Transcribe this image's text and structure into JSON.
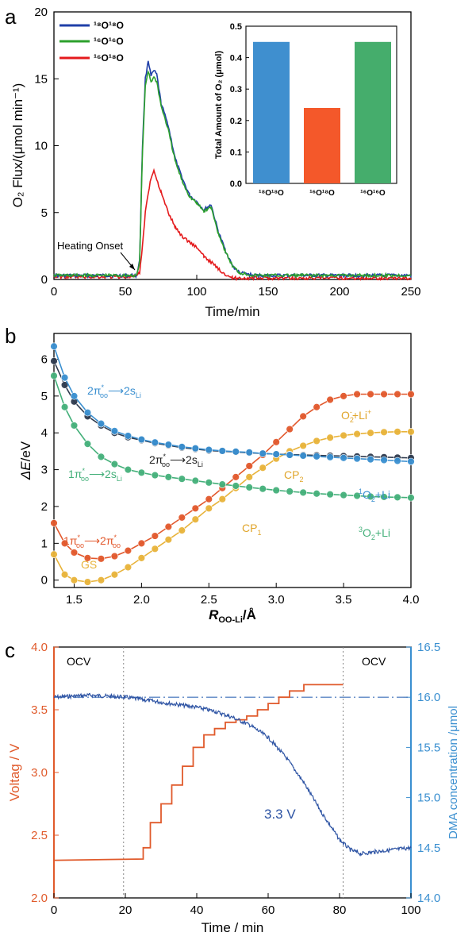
{
  "chart_data": [
    {
      "panel_label": "a",
      "type": "line",
      "xlabel": "Time/min",
      "ylabel": "O₂ Flux/(μmol min⁻¹)",
      "xlim": [
        0,
        250
      ],
      "ylim": [
        0,
        20
      ],
      "xticks": [
        "0",
        "50",
        "100",
        "150",
        "200",
        "250"
      ],
      "yticks": [
        "0",
        "5",
        "10",
        "15",
        "20"
      ],
      "legend_position": "top-left",
      "annotation": "Heating Onset",
      "annotation_x": 60,
      "series": [
        {
          "name": "¹⁸O¹⁸O",
          "color": "#1f3fa8",
          "x": [
            0,
            58,
            60,
            62,
            64,
            66,
            68,
            70,
            72,
            75,
            80,
            85,
            90,
            95,
            100,
            105,
            110,
            115,
            120,
            125,
            130,
            140,
            250
          ],
          "y": [
            0.3,
            0.3,
            1.5,
            10,
            15,
            16.4,
            15.2,
            15.6,
            15.3,
            13.2,
            11.5,
            9,
            7.5,
            6.3,
            5.8,
            5.2,
            5.6,
            3.6,
            2.2,
            1,
            0.5,
            0.3,
            0.3
          ]
        },
        {
          "name": "¹⁶O¹⁶O",
          "color": "#2ca02c",
          "x": [
            0,
            58,
            60,
            62,
            64,
            66,
            68,
            70,
            72,
            75,
            80,
            85,
            90,
            95,
            100,
            105,
            110,
            115,
            120,
            125,
            130,
            140,
            250
          ],
          "y": [
            0.3,
            0.3,
            1.3,
            9.5,
            14.5,
            15.6,
            14.8,
            15.1,
            14.8,
            13,
            11.2,
            8.8,
            7.3,
            6.2,
            5.7,
            5.1,
            5.4,
            3.5,
            2.1,
            1,
            0.5,
            0.3,
            0.3
          ]
        },
        {
          "name": "¹⁶O¹⁸O",
          "color": "#e41a1c",
          "x": [
            0,
            58,
            60,
            62,
            64,
            66,
            68,
            70,
            72,
            75,
            80,
            85,
            90,
            95,
            100,
            105,
            110,
            115,
            120,
            125,
            250
          ],
          "y": [
            0.2,
            0.2,
            0.5,
            2.5,
            5,
            6.5,
            7.6,
            8.1,
            7.5,
            6.5,
            5,
            3.9,
            3.2,
            2.8,
            2.4,
            1.7,
            1.3,
            0.8,
            0.4,
            0.1,
            0.1
          ]
        }
      ],
      "inset": {
        "type": "bar",
        "ylabel": "Total Amount of O₂ (μmol)",
        "ylim": [
          0,
          0.5
        ],
        "yticks": [
          "0.0",
          "0.1",
          "0.2",
          "0.3",
          "0.4",
          "0.5"
        ],
        "categories": [
          "¹⁸O¹⁸O",
          "¹⁶O¹⁸O",
          "¹⁶O¹⁶O"
        ],
        "values": [
          0.45,
          0.24,
          0.45
        ],
        "colors": [
          "#3f8fcf",
          "#f4582a",
          "#45ad6c"
        ]
      }
    },
    {
      "panel_label": "b",
      "type": "line",
      "xlabel_main": "R",
      "xlabel_sub": "OO-Li",
      "xlabel_tail": "/Å",
      "ylabel_main": "ΔE",
      "ylabel_tail": "/eV",
      "xlim": [
        1.35,
        4.0
      ],
      "ylim": [
        -0.2,
        6.7
      ],
      "xticks": [
        "1.5",
        "2.0",
        "2.5",
        "3.0",
        "3.5",
        "4.0"
      ],
      "yticks": [
        "0",
        "1",
        "2",
        "3",
        "4",
        "5",
        "6"
      ],
      "x": [
        1.35,
        1.43,
        1.5,
        1.6,
        1.7,
        1.8,
        1.9,
        2.0,
        2.1,
        2.2,
        2.3,
        2.4,
        2.5,
        2.6,
        2.7,
        2.8,
        2.9,
        3.0,
        3.1,
        3.2,
        3.3,
        3.4,
        3.5,
        3.6,
        3.7,
        3.8,
        3.9,
        4.0
      ],
      "series": [
        {
          "name": "",
          "color": "#e2582c",
          "y": [
            1.55,
            1.0,
            0.75,
            0.6,
            0.58,
            0.65,
            0.8,
            1.0,
            1.2,
            1.45,
            1.7,
            1.95,
            2.2,
            2.5,
            2.8,
            3.1,
            3.4,
            3.75,
            4.1,
            4.45,
            4.7,
            4.9,
            5.0,
            5.05,
            5.05,
            5.05,
            5.05,
            5.05
          ]
        },
        {
          "name": "",
          "color": "#e8b33a",
          "y": [
            0.7,
            0.15,
            0.0,
            -0.05,
            0.0,
            0.15,
            0.35,
            0.6,
            0.85,
            1.1,
            1.35,
            1.65,
            1.95,
            2.2,
            2.5,
            2.8,
            3.05,
            3.3,
            3.5,
            3.65,
            3.78,
            3.87,
            3.93,
            3.97,
            4.0,
            4.02,
            4.03,
            4.03
          ]
        },
        {
          "name": "",
          "color": "#2e3a4e",
          "y": [
            5.95,
            5.3,
            4.85,
            4.45,
            4.2,
            4.0,
            3.88,
            3.8,
            3.72,
            3.66,
            3.6,
            3.56,
            3.52,
            3.5,
            3.48,
            3.46,
            3.44,
            3.42,
            3.41,
            3.4,
            3.39,
            3.38,
            3.37,
            3.36,
            3.35,
            3.34,
            3.33,
            3.32
          ]
        },
        {
          "name": "",
          "color": "#3a8fd0",
          "y": [
            6.35,
            5.5,
            5.0,
            4.55,
            4.25,
            4.05,
            3.92,
            3.82,
            3.74,
            3.68,
            3.62,
            3.58,
            3.54,
            3.51,
            3.49,
            3.47,
            3.44,
            3.42,
            3.4,
            3.38,
            3.36,
            3.34,
            3.32,
            3.3,
            3.28,
            3.26,
            3.24,
            3.22
          ]
        },
        {
          "name": "",
          "color": "#44b07a",
          "y": [
            5.55,
            4.7,
            4.2,
            3.7,
            3.35,
            3.15,
            3.0,
            2.92,
            2.85,
            2.8,
            2.75,
            2.7,
            2.65,
            2.6,
            2.56,
            2.52,
            2.48,
            2.44,
            2.41,
            2.38,
            2.35,
            2.33,
            2.31,
            2.29,
            2.27,
            2.26,
            2.25,
            2.24
          ]
        }
      ],
      "labels": {
        "two_pi_a_main": "2π",
        "two_pi_a_sup": "*",
        "two_pi_a_sub": "oo",
        "two_pi_a_arrow": "⟶2s",
        "two_pi_a_li": "Li",
        "two_pi_b_main": "2π",
        "two_pi_b_sup": "*",
        "two_pi_b_sub": "oo",
        "two_pi_b_arrow": "⟶2s",
        "two_pi_b_li": "Li",
        "one_pi_main": "1π",
        "one_pi_sup": "*",
        "one_pi_sub": "oo",
        "one_pi_arrow": "⟶2s",
        "one_pi_li": "Li",
        "red_main": "1π",
        "red_sup": "*",
        "red_sub": "oo",
        "red_arrow": "⟶2π",
        "red_sup2": "*",
        "red_sub2": "oo",
        "gs": "GS",
        "cp1_main": "CP",
        "cp1_sub": "1",
        "cp2_main": "CP",
        "cp2_sub": "2",
        "o2li_main": "O",
        "o2li_sub": "2",
        "o2li_sup": "-",
        "o2li_tail": "+Li",
        "o2li_sup2": "+",
        "singlet_sup": "1",
        "singlet_main": "O",
        "singlet_sub": "2",
        "singlet_tail": "+Li",
        "triplet_sup": "3",
        "triplet_main": "O",
        "triplet_sub": "2",
        "triplet_tail": "+Li"
      }
    },
    {
      "panel_label": "c",
      "type": "line",
      "xlabel": "Time / min",
      "ylabel_left": "Voltag / V",
      "ylabel_right": "DMA concentration /μmol",
      "xlim": [
        0,
        100
      ],
      "ylim_left": [
        2.0,
        4.0
      ],
      "ylim_right": [
        14.0,
        16.5
      ],
      "xticks": [
        "0",
        "20",
        "40",
        "60",
        "80",
        "100"
      ],
      "yticks_left": [
        "2.0",
        "2.5",
        "3.0",
        "3.5",
        "4.0"
      ],
      "yticks_right": [
        "14.0",
        "14.5",
        "15.0",
        "15.5",
        "16.0",
        "16.5"
      ],
      "ocv_left": "OCV",
      "ocv_right": "OCV",
      "vline_x": [
        19.5,
        81
      ],
      "dashed_level": 16.0,
      "annotation": "3.3 V",
      "series": [
        {
          "name": "",
          "axis": "left",
          "color": "#e05a2b",
          "x": [
            0,
            25,
            25,
            27,
            27,
            30,
            30,
            33,
            33,
            36,
            36,
            39,
            39,
            42,
            42,
            45,
            45,
            48,
            48,
            51,
            51,
            54,
            54,
            57,
            57,
            60,
            60,
            63,
            63,
            66,
            66,
            70,
            70,
            81
          ],
          "y": [
            2.3,
            2.31,
            2.4,
            2.4,
            2.6,
            2.6,
            2.75,
            2.75,
            2.9,
            2.9,
            3.05,
            3.05,
            3.2,
            3.2,
            3.3,
            3.3,
            3.35,
            3.35,
            3.4,
            3.4,
            3.42,
            3.42,
            3.45,
            3.45,
            3.5,
            3.5,
            3.55,
            3.55,
            3.6,
            3.6,
            3.65,
            3.65,
            3.7,
            3.7
          ]
        },
        {
          "name": "",
          "axis": "right",
          "color": "#2e54a4",
          "x": [
            0,
            10,
            20,
            30,
            40,
            45,
            50,
            55,
            60,
            65,
            70,
            75,
            80,
            83,
            86,
            90,
            95,
            100
          ],
          "y": [
            16.0,
            16.02,
            16.0,
            15.95,
            15.9,
            15.86,
            15.8,
            15.72,
            15.6,
            15.4,
            15.15,
            14.85,
            14.58,
            14.48,
            14.44,
            14.46,
            14.48,
            14.5
          ]
        }
      ]
    }
  ]
}
